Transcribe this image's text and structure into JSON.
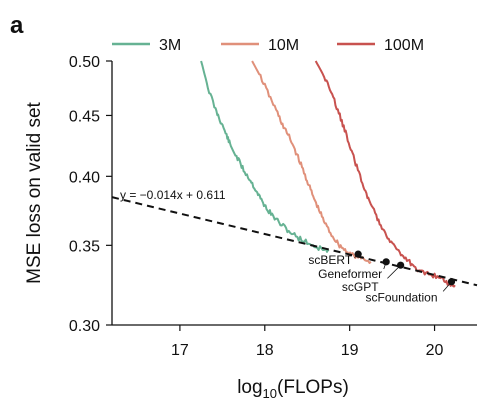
{
  "panel_label": "a",
  "chart_data": {
    "type": "line",
    "xlabel_main": "log",
    "xlabel_sub": "10",
    "xlabel_rest": "(FLOPs)",
    "ylabel": "MSE loss on valid set",
    "xlim": [
      16.2,
      20.5
    ],
    "ylim": [
      0.3,
      0.5
    ],
    "y_scale": "log",
    "x_ticks": [
      17,
      18,
      19,
      20
    ],
    "y_ticks": [
      0.3,
      0.35,
      0.4,
      0.45,
      0.5
    ],
    "y_tick_labels": [
      "0.30",
      "0.35",
      "0.40",
      "0.45",
      "0.50"
    ],
    "legend_position": "top",
    "series": [
      {
        "name": "3M",
        "color": "#66b293",
        "points": [
          [
            17.25,
            0.5
          ],
          [
            17.33,
            0.475
          ],
          [
            17.42,
            0.455
          ],
          [
            17.48,
            0.445
          ],
          [
            17.55,
            0.433
          ],
          [
            17.6,
            0.424
          ],
          [
            17.68,
            0.414
          ],
          [
            17.75,
            0.405
          ],
          [
            17.83,
            0.397
          ],
          [
            17.9,
            0.389
          ],
          [
            17.96,
            0.382
          ],
          [
            18.02,
            0.376
          ],
          [
            18.1,
            0.37
          ],
          [
            18.2,
            0.364
          ],
          [
            18.3,
            0.359
          ],
          [
            18.4,
            0.355
          ],
          [
            18.5,
            0.352
          ],
          [
            18.6,
            0.349
          ],
          [
            18.7,
            0.347
          ],
          [
            18.75,
            0.346
          ]
        ]
      },
      {
        "name": "10M",
        "color": "#e0907a",
        "points": [
          [
            17.85,
            0.5
          ],
          [
            17.95,
            0.485
          ],
          [
            18.05,
            0.468
          ],
          [
            18.15,
            0.452
          ],
          [
            18.22,
            0.44
          ],
          [
            18.3,
            0.43
          ],
          [
            18.38,
            0.417
          ],
          [
            18.45,
            0.405
          ],
          [
            18.52,
            0.393
          ],
          [
            18.58,
            0.383
          ],
          [
            18.65,
            0.373
          ],
          [
            18.72,
            0.364
          ],
          [
            18.8,
            0.356
          ],
          [
            18.88,
            0.35
          ],
          [
            18.96,
            0.346
          ],
          [
            19.05,
            0.343
          ],
          [
            19.15,
            0.341
          ],
          [
            19.25,
            0.339
          ]
        ]
      },
      {
        "name": "100M",
        "color": "#c8524f",
        "points": [
          [
            18.6,
            0.5
          ],
          [
            18.7,
            0.485
          ],
          [
            18.78,
            0.47
          ],
          [
            18.86,
            0.455
          ],
          [
            18.93,
            0.44
          ],
          [
            19.0,
            0.425
          ],
          [
            19.07,
            0.41
          ],
          [
            19.15,
            0.395
          ],
          [
            19.22,
            0.383
          ],
          [
            19.3,
            0.372
          ],
          [
            19.38,
            0.363
          ],
          [
            19.46,
            0.355
          ],
          [
            19.55,
            0.348
          ],
          [
            19.63,
            0.342
          ],
          [
            19.72,
            0.338
          ],
          [
            19.8,
            0.334
          ],
          [
            19.9,
            0.332
          ],
          [
            20.0,
            0.33
          ],
          [
            20.1,
            0.327
          ],
          [
            20.18,
            0.325
          ],
          [
            20.24,
            0.324
          ]
        ]
      }
    ],
    "fit_line": {
      "equation": "y = −0.014x + 0.611",
      "slope": -0.014,
      "intercept": 0.611,
      "x_range": [
        16.2,
        20.5
      ]
    },
    "models": [
      {
        "name": "scBERT",
        "x": 19.1,
        "y": 0.3441
      },
      {
        "name": "Geneformer",
        "x": 19.43,
        "y": 0.339
      },
      {
        "name": "scGPT",
        "x": 19.6,
        "y": 0.3368
      },
      {
        "name": "scFoundation",
        "x": 20.2,
        "y": 0.3262
      }
    ]
  }
}
